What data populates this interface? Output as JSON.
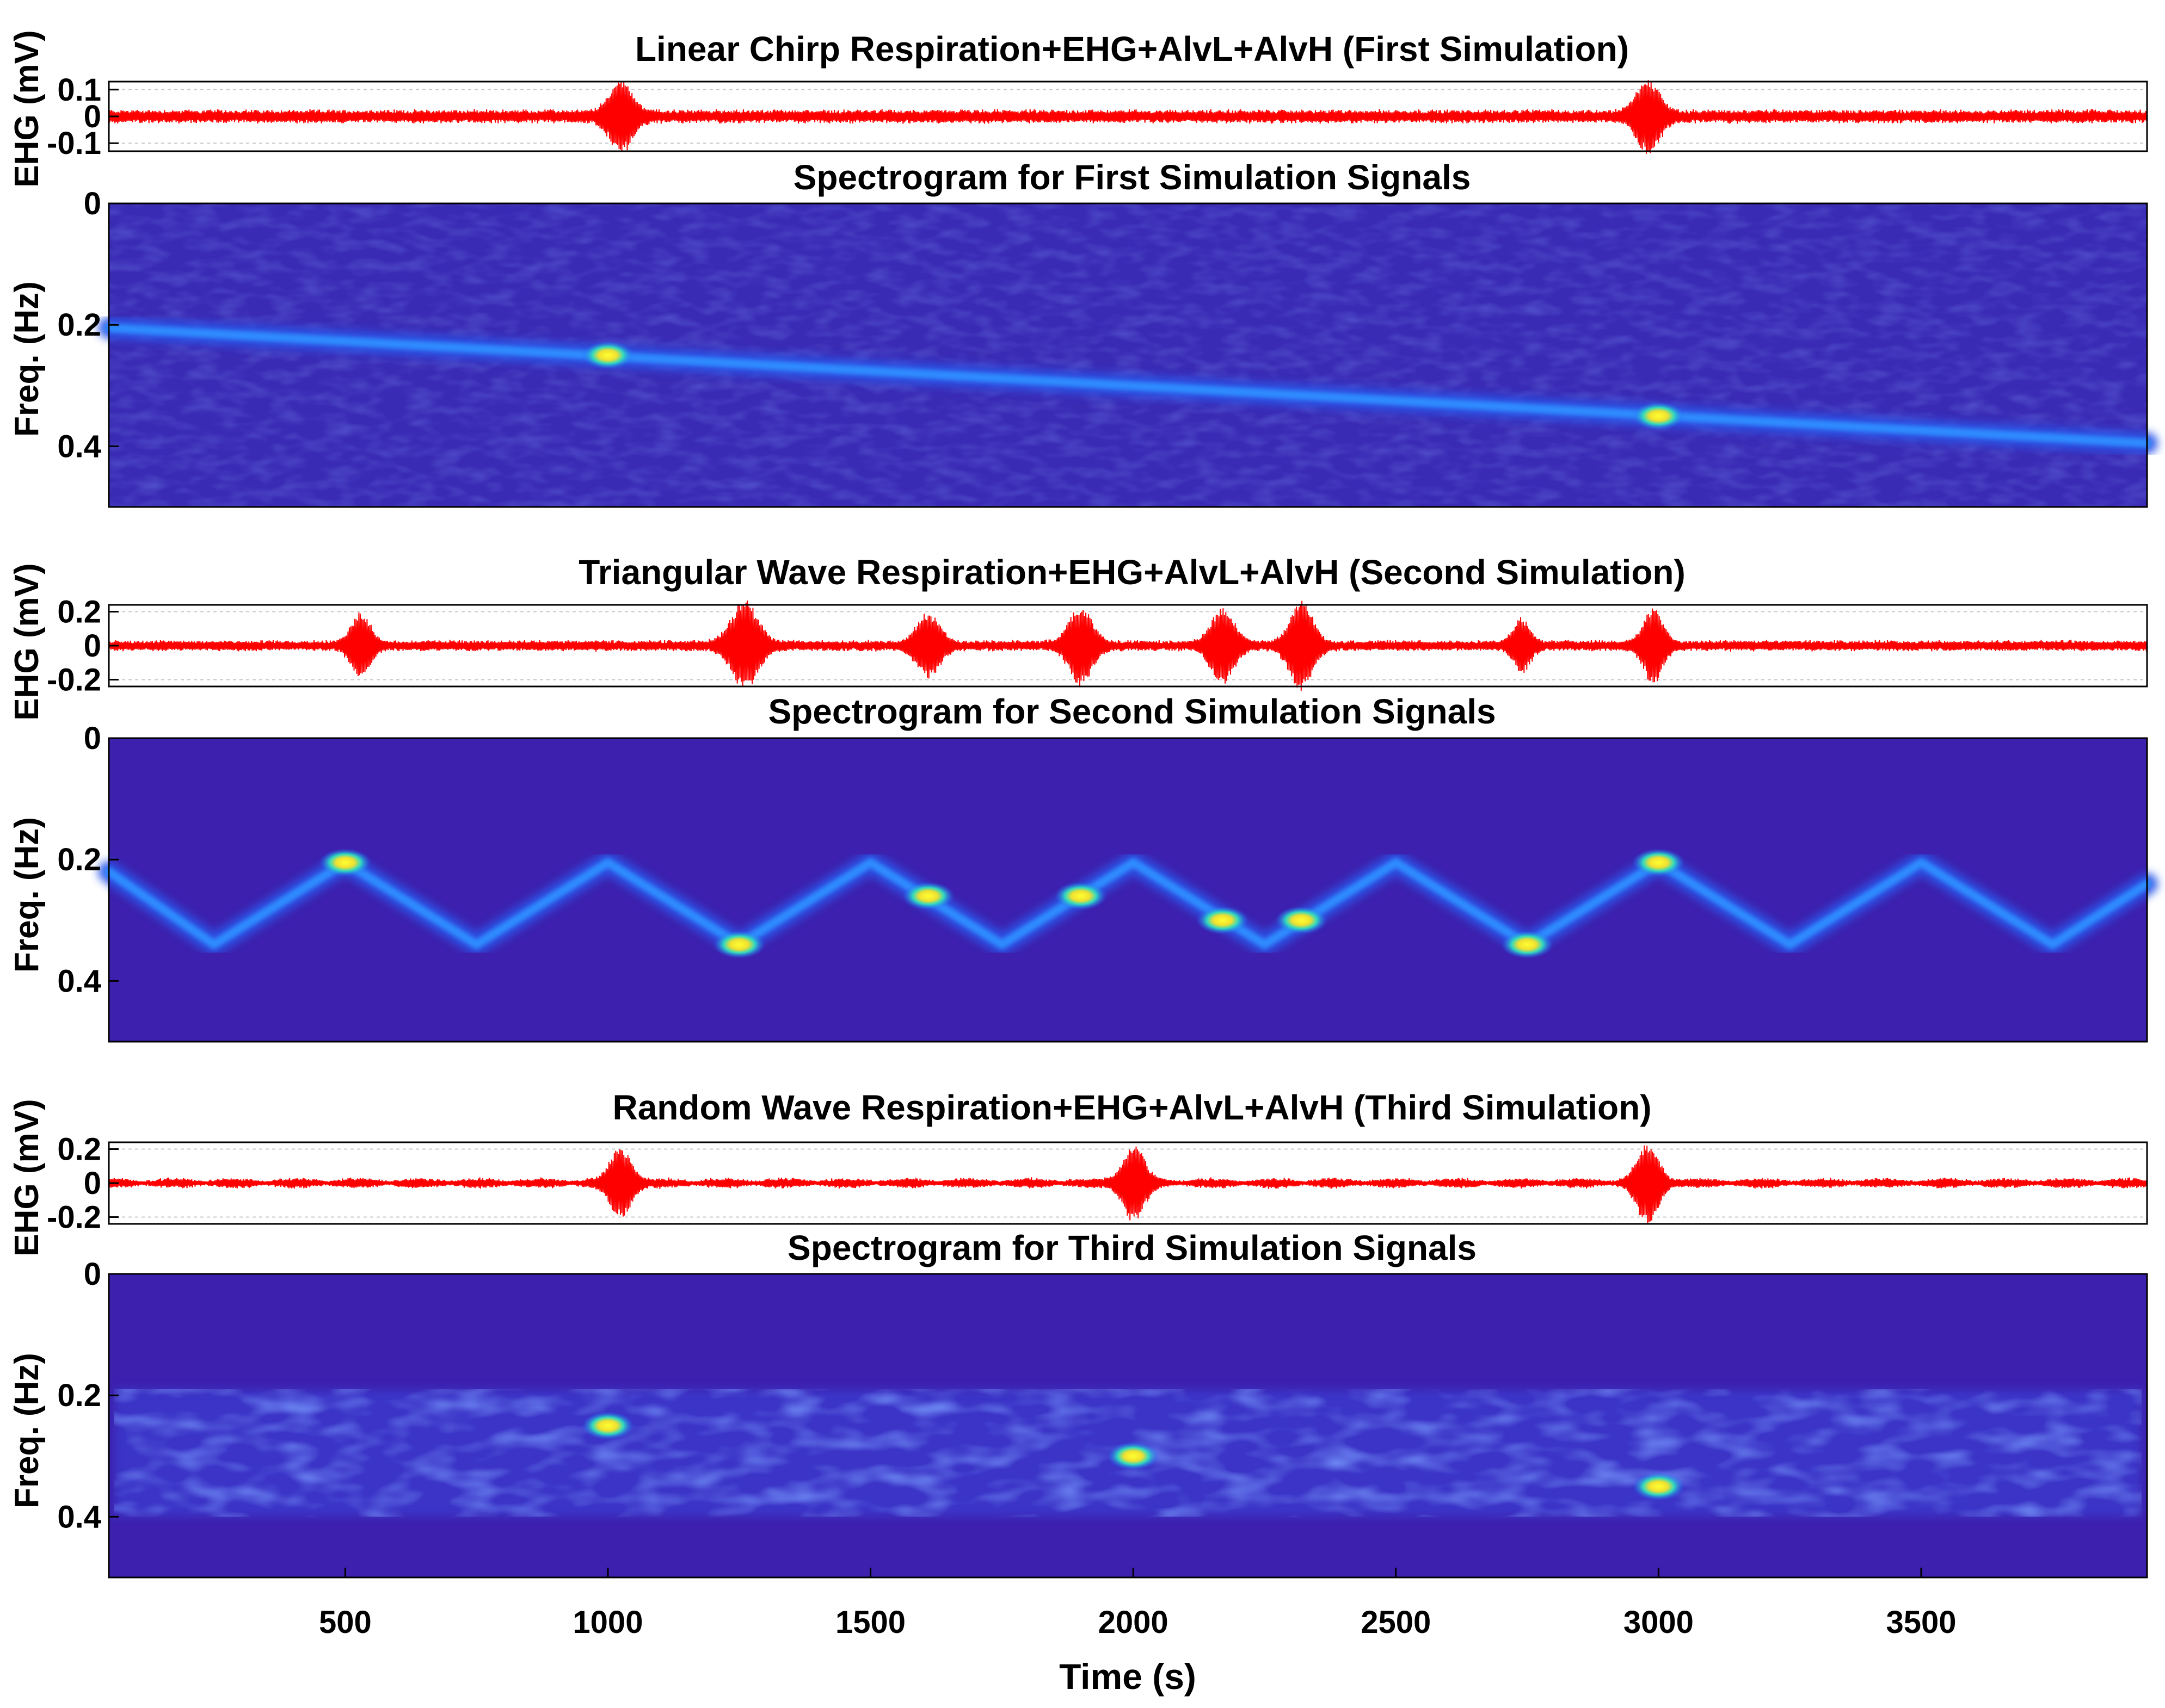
{
  "chart_data": [
    {
      "type": "line",
      "title": "Linear Chirp Respiration+EHG+AlvL+AlvH (First Simulation)",
      "ylabel": "EHG (mV)",
      "color": "#ff0000",
      "xlim": [
        50,
        3930
      ],
      "ylim": [
        -0.13,
        0.13
      ],
      "yticks": [
        -0.1,
        0,
        0.1
      ],
      "ytick_labels": [
        "-0.1",
        "0",
        "0.1"
      ],
      "base_amplitude": 0.028,
      "bursts": [
        {
          "center": 1025,
          "amplitude": 0.12,
          "width": 30
        },
        {
          "center": 2980,
          "amplitude": 0.12,
          "width": 30
        }
      ]
    },
    {
      "type": "heatmap",
      "title": "Spectrogram for First Simulation Signals",
      "ylabel": "Freq. (Hz)",
      "xlim": [
        50,
        3930
      ],
      "ylim": [
        0,
        0.5
      ],
      "yticks": [
        0,
        0.2,
        0.4
      ],
      "ytick_labels": [
        "0",
        "0.2",
        "0.4"
      ],
      "background": "#3a2bb5",
      "ridge": {
        "x": [
          50,
          3930
        ],
        "freq": [
          0.205,
          0.395
        ]
      },
      "hotspots": [
        {
          "t": 1000,
          "f": 0.25
        },
        {
          "t": 3000,
          "f": 0.35
        }
      ]
    },
    {
      "type": "line",
      "title": "Triangular Wave Respiration+EHG+AlvL+AlvH (Second Simulation)",
      "ylabel": "EHG (mV)",
      "color": "#ff0000",
      "xlim": [
        50,
        3930
      ],
      "ylim": [
        -0.24,
        0.24
      ],
      "yticks": [
        -0.2,
        0,
        0.2
      ],
      "ytick_labels": [
        "-0.2",
        "0",
        "0.2"
      ],
      "base_amplitude": 0.035,
      "bursts": [
        {
          "center": 530,
          "amplitude": 0.17,
          "width": 25
        },
        {
          "center": 1260,
          "amplitude": 0.24,
          "width": 35
        },
        {
          "center": 1610,
          "amplitude": 0.17,
          "width": 30
        },
        {
          "center": 1900,
          "amplitude": 0.21,
          "width": 30
        },
        {
          "center": 2170,
          "amplitude": 0.2,
          "width": 30
        },
        {
          "center": 2320,
          "amplitude": 0.24,
          "width": 30
        },
        {
          "center": 2740,
          "amplitude": 0.14,
          "width": 22
        },
        {
          "center": 2990,
          "amplitude": 0.2,
          "width": 25
        }
      ]
    },
    {
      "type": "heatmap",
      "title": "Spectrogram for Second Simulation Signals",
      "ylabel": "Freq. (Hz)",
      "xlim": [
        50,
        3930
      ],
      "ylim": [
        0,
        0.5
      ],
      "yticks": [
        0,
        0.2,
        0.4
      ],
      "ytick_labels": [
        "0",
        "0.2",
        "0.4"
      ],
      "background": "#3d20ad",
      "ridge": {
        "x": [
          50,
          250,
          500,
          750,
          1000,
          1250,
          1500,
          1750,
          2000,
          2250,
          2500,
          2750,
          3000,
          3250,
          3500,
          3750,
          3930
        ],
        "freq": [
          0.22,
          0.34,
          0.205,
          0.34,
          0.205,
          0.34,
          0.205,
          0.34,
          0.205,
          0.34,
          0.205,
          0.34,
          0.205,
          0.34,
          0.205,
          0.34,
          0.24
        ]
      },
      "hotspots": [
        {
          "t": 500,
          "f": 0.205
        },
        {
          "t": 1250,
          "f": 0.34
        },
        {
          "t": 1610,
          "f": 0.26
        },
        {
          "t": 1900,
          "f": 0.26
        },
        {
          "t": 2170,
          "f": 0.3
        },
        {
          "t": 2320,
          "f": 0.3
        },
        {
          "t": 2750,
          "f": 0.34
        },
        {
          "t": 3000,
          "f": 0.205
        }
      ]
    },
    {
      "type": "line",
      "title": "Random Wave Respiration+EHG+AlvL+AlvH (Third Simulation)",
      "ylabel": "EHG (mV)",
      "color": "#ff0000",
      "xlim": [
        50,
        3930
      ],
      "ylim": [
        -0.24,
        0.24
      ],
      "yticks": [
        -0.2,
        0,
        0.2
      ],
      "ytick_labels": [
        "-0.2",
        "0",
        "0.2"
      ],
      "base_amplitude": 0.025,
      "bursts": [
        {
          "center": 1025,
          "amplitude": 0.19,
          "width": 28
        },
        {
          "center": 2000,
          "amplitude": 0.21,
          "width": 28
        },
        {
          "center": 2980,
          "amplitude": 0.22,
          "width": 28
        }
      ]
    },
    {
      "type": "heatmap",
      "title": "Spectrogram for Third Simulation Signals",
      "ylabel": "Freq. (Hz)",
      "xlim": [
        50,
        3930
      ],
      "ylim": [
        0,
        0.5
      ],
      "yticks": [
        0,
        0.2,
        0.4
      ],
      "ytick_labels": [
        "0",
        "0.2",
        "0.4"
      ],
      "background": "#3d20ad",
      "noise_band": [
        0.19,
        0.4
      ],
      "hotspots": [
        {
          "t": 1000,
          "f": 0.25
        },
        {
          "t": 2000,
          "f": 0.3
        },
        {
          "t": 3000,
          "f": 0.35
        }
      ]
    }
  ],
  "x_axis": {
    "label": "Time (s)",
    "ticks": [
      500,
      1000,
      1500,
      2000,
      2500,
      3000,
      3500
    ],
    "tick_labels": [
      "500",
      "1000",
      "1500",
      "2000",
      "2500",
      "3000",
      "3500"
    ]
  }
}
